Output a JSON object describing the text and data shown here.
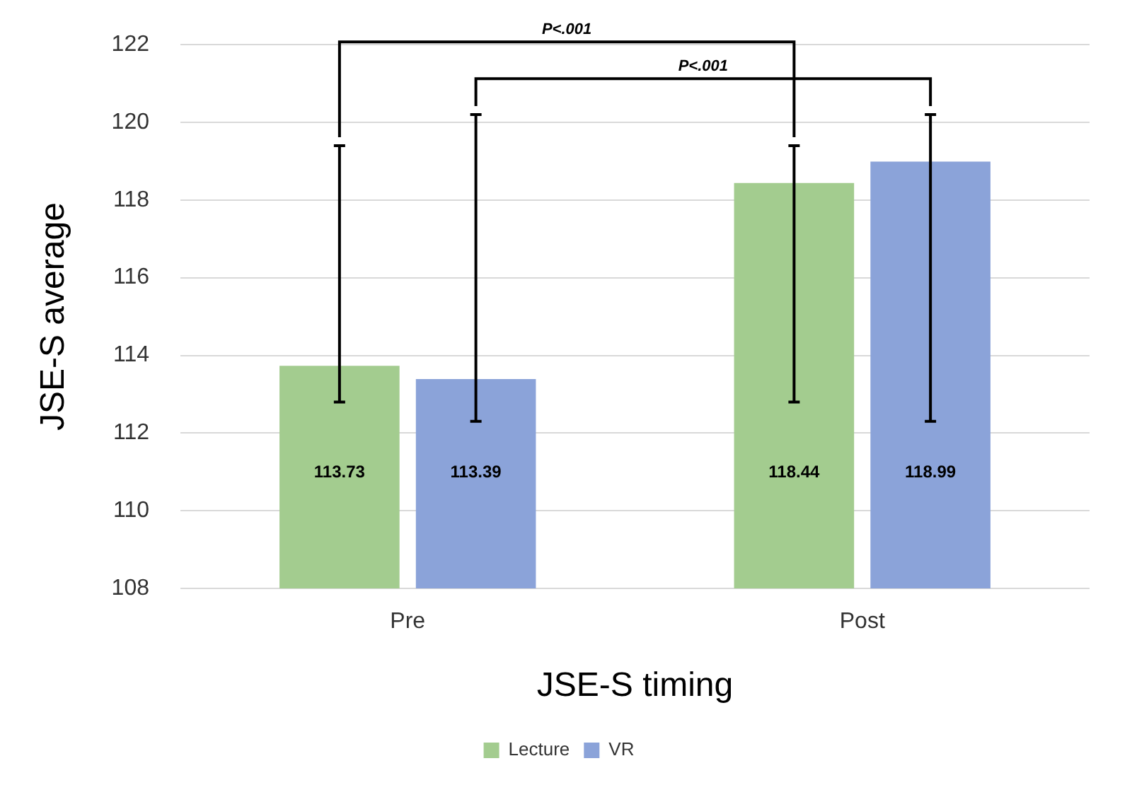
{
  "chart_data": {
    "type": "bar",
    "xlabel": "JSE-S timing",
    "ylabel": "JSE-S average",
    "categories": [
      "Pre",
      "Post"
    ],
    "series": [
      {
        "name": "Lecture",
        "color": "#a3cc8f",
        "values": [
          113.73,
          118.44
        ],
        "errors": [
          [
            112.8,
            119.4
          ],
          [
            112.8,
            119.4
          ]
        ]
      },
      {
        "name": "VR",
        "color": "#8ba3d9",
        "values": [
          113.39,
          118.99
        ],
        "errors": [
          [
            112.3,
            120.2
          ],
          [
            112.3,
            120.2
          ]
        ]
      }
    ],
    "ylim": [
      108,
      122
    ],
    "yticks": [
      108,
      110,
      112,
      114,
      116,
      118,
      120,
      122
    ],
    "grid": "y",
    "legend": "bottom",
    "data_labels": true,
    "annotations": [
      "P<.001",
      "P<.001"
    ]
  }
}
